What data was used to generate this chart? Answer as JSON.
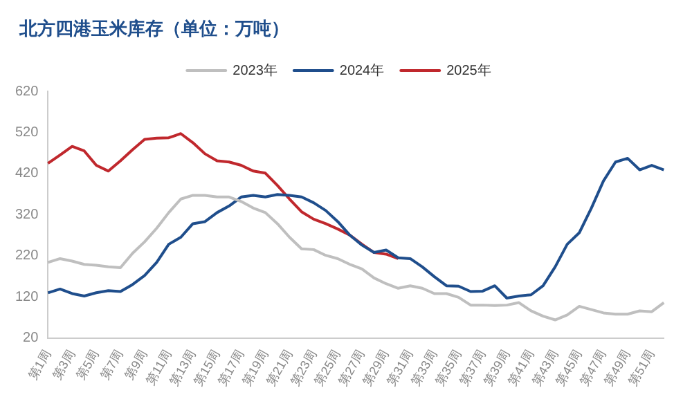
{
  "chart_data": {
    "type": "line",
    "title": "北方四港玉米库存（单位：万吨）",
    "categories": [
      "第1周",
      null,
      "第3周",
      null,
      "第5周",
      null,
      "第7周",
      null,
      "第9周",
      null,
      "第11周",
      null,
      "第13周",
      null,
      "第15周",
      null,
      "第17周",
      null,
      "第19周",
      null,
      "第21周",
      null,
      "第23周",
      null,
      "第25周",
      null,
      "第27周",
      null,
      "第29周",
      null,
      "第31周",
      null,
      "第33周",
      null,
      "第35周",
      null,
      "第37周",
      null,
      "第39周",
      null,
      "第41周",
      null,
      "第43周",
      null,
      "第45周",
      null,
      "第47周",
      null,
      "第49周",
      null,
      "第51周",
      null
    ],
    "series": [
      {
        "name": "2023年",
        "color": "#bfbfbf",
        "values": [
          204,
          213,
          207,
          199,
          197,
          193,
          191,
          226,
          254,
          287,
          325,
          358,
          367,
          367,
          363,
          363,
          352,
          336,
          325,
          298,
          265,
          237,
          235,
          221,
          213,
          199,
          188,
          166,
          152,
          141,
          147,
          141,
          128,
          128,
          119,
          100,
          100,
          99,
          100,
          106,
          86,
          73,
          64,
          76,
          97,
          89,
          81,
          78,
          78,
          86,
          84,
          106
        ]
      },
      {
        "name": "2024年",
        "color": "#1f4e8c",
        "values": [
          130,
          139,
          128,
          122,
          130,
          135,
          133,
          150,
          172,
          204,
          248,
          265,
          298,
          303,
          325,
          341,
          363,
          367,
          363,
          369,
          367,
          363,
          349,
          330,
          303,
          270,
          246,
          228,
          234,
          215,
          213,
          193,
          169,
          147,
          146,
          133,
          134,
          147,
          117,
          122,
          125,
          147,
          193,
          248,
          276,
          336,
          402,
          448,
          457,
          429,
          440,
          429
        ]
      },
      {
        "name": "2025年",
        "color": "#c0282d",
        "values": [
          445,
          465,
          486,
          475,
          440,
          426,
          451,
          478,
          503,
          506,
          507,
          517,
          495,
          468,
          451,
          448,
          440,
          426,
          421,
          391,
          358,
          327,
          309,
          298,
          285,
          270,
          248,
          228,
          224,
          213,
          null,
          null,
          null,
          null,
          null,
          null,
          null,
          null,
          null,
          null,
          null,
          null,
          null,
          null,
          null,
          null,
          null,
          null,
          null,
          null,
          null,
          null
        ]
      }
    ],
    "ylim": [
      20,
      620
    ],
    "yticks": [
      20,
      120,
      220,
      320,
      420,
      520,
      620
    ],
    "grid": false,
    "legend": "top",
    "marker": "none",
    "line_style": "solid"
  }
}
